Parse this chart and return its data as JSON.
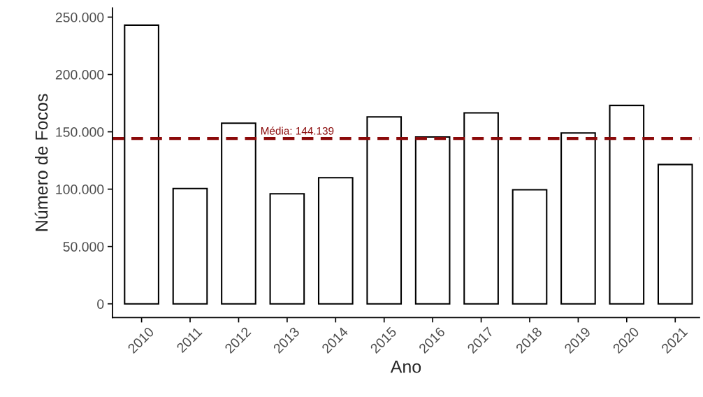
{
  "chart_data": {
    "type": "bar",
    "xlabel": "Ano",
    "ylabel": "Número de Focos",
    "categories": [
      "2010",
      "2011",
      "2012",
      "2013",
      "2014",
      "2015",
      "2016",
      "2017",
      "2018",
      "2019",
      "2020",
      "2021"
    ],
    "values": [
      243000,
      100500,
      157500,
      96000,
      110000,
      163000,
      145500,
      166500,
      99500,
      149000,
      173000,
      121500
    ],
    "color": "#ffffff",
    "ylim": [
      -12000,
      258000
    ],
    "yticks": [
      {
        "value": 0,
        "label": "0"
      },
      {
        "value": 50000,
        "label": "50.000"
      },
      {
        "value": 100000,
        "label": "100.000"
      },
      {
        "value": 150000,
        "label": "150.000"
      },
      {
        "value": 200000,
        "label": "200.000"
      },
      {
        "value": 250000,
        "label": "250.000"
      }
    ],
    "ref_lines": [
      {
        "axis": "y",
        "value": 144139,
        "label": "Média: 144.139",
        "color": "#8b0a0a",
        "line_style": "dashed"
      }
    ],
    "grid": false,
    "legend": false
  }
}
